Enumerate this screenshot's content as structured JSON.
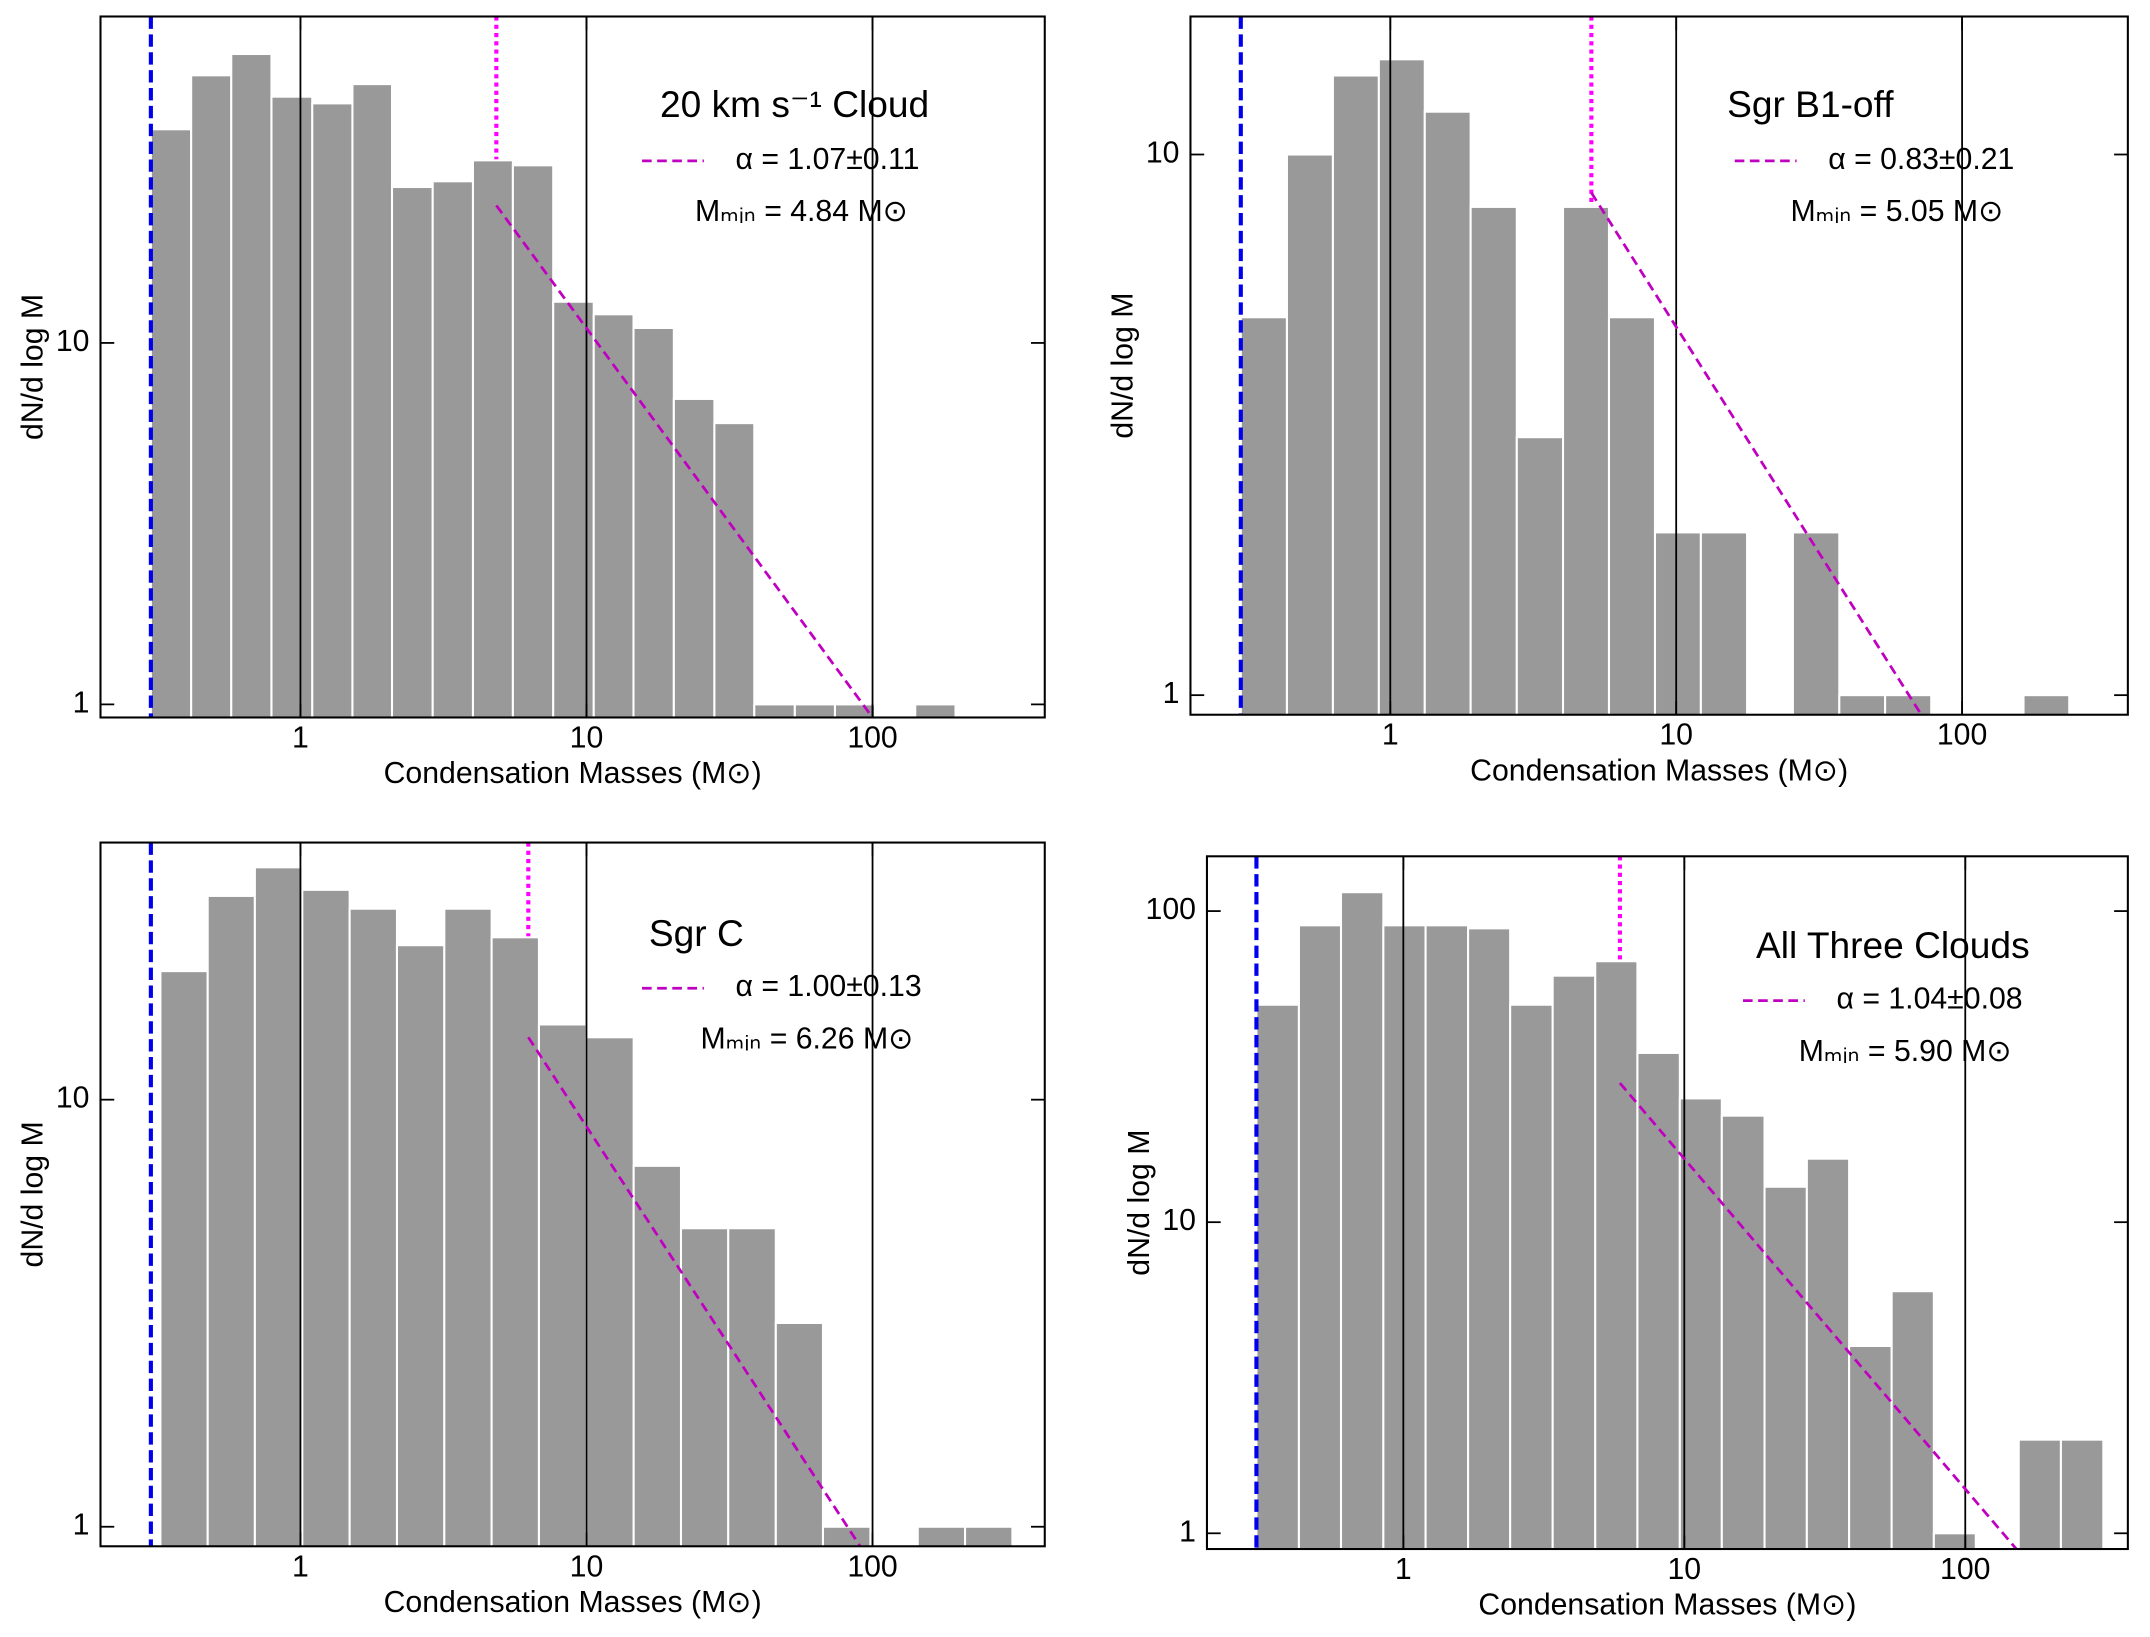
{
  "chart_data": [
    {
      "type": "histogram",
      "title": "20 km s⁻¹ Cloud",
      "x_label": "Condensation Masses (M⊙)",
      "y_label": "dN/d log M",
      "xscale": "log",
      "yscale": "log",
      "xlim": [
        0.2,
        400
      ],
      "ylim": [
        0.92,
        80
      ],
      "xticks": [
        1,
        10,
        100
      ],
      "yticks": [
        1,
        10
      ],
      "grid": true,
      "grid_color": "#000000",
      "bins": [
        0.3,
        0.415,
        0.573,
        0.792,
        1.1,
        1.52,
        2.09,
        2.9,
        4.01,
        5.53,
        7.65,
        10.6,
        14.6,
        20.2,
        28.0,
        38.6,
        53.5,
        73.9,
        102,
        141,
        195
      ],
      "values": [
        39,
        55,
        63,
        48,
        46,
        52,
        27,
        28,
        32,
        31,
        13,
        12,
        11,
        7,
        6,
        1,
        1,
        1,
        0,
        1
      ],
      "color": "#999999",
      "completeness_limit": 0.3,
      "completeness_color": "#0000ee",
      "mmin": 4.84,
      "mmin_color": "#ff00ff",
      "fit": {
        "name": "α = 1.07±0.11",
        "color": "#c000c0",
        "x": [
          4.84,
          100
        ],
        "y": [
          24,
          0.92
        ]
      },
      "annotations": [
        "Mₘᵢₙ = 4.84 M⊙"
      ]
    },
    {
      "type": "histogram",
      "title": "Sgr B1-off",
      "x_label": "Condensation Masses (M⊙)",
      "y_label": "dN/d log M",
      "xscale": "log",
      "yscale": "log",
      "xlim": [
        0.2,
        380
      ],
      "ylim": [
        0.92,
        18
      ],
      "xticks": [
        1,
        10,
        100
      ],
      "yticks": [
        1,
        10
      ],
      "grid": true,
      "grid_color": "#000000",
      "bins": [
        0.3,
        0.435,
        0.63,
        0.912,
        1.32,
        1.91,
        2.77,
        4.02,
        5.82,
        8.43,
        12.2,
        17.7,
        25.6,
        37.2,
        53.8,
        78.0,
        113,
        164,
        237
      ],
      "values": [
        5,
        10,
        14,
        15,
        12,
        8,
        3,
        8,
        5,
        2,
        2,
        0,
        2,
        1,
        1,
        0,
        0,
        1
      ],
      "color": "#999999",
      "completeness_limit": 0.3,
      "completeness_color": "#0000ee",
      "mmin": 5.05,
      "mmin_color": "#ff00ff",
      "fit": {
        "name": "α = 0.83±0.21",
        "color": "#c000c0",
        "x": [
          5.05,
          72
        ],
        "y": [
          8.5,
          0.92
        ]
      },
      "annotations": [
        "Mₘᵢₙ = 5.05 M⊙"
      ]
    },
    {
      "type": "histogram",
      "title": "Sgr C",
      "x_label": "Condensation Masses (M⊙)",
      "y_label": "dN/d log M",
      "xscale": "log",
      "yscale": "log",
      "xlim": [
        0.2,
        400
      ],
      "ylim": [
        0.9,
        40
      ],
      "xticks": [
        1,
        10,
        100
      ],
      "yticks": [
        1,
        10
      ],
      "grid": true,
      "grid_color": "#000000",
      "bins": [
        0.324,
        0.474,
        0.693,
        1.015,
        1.486,
        2.175,
        3.184,
        4.66,
        6.82,
        9.99,
        14.62,
        21.4,
        31.3,
        45.9,
        67.1,
        98.3,
        143.9,
        210.6,
        308.3
      ],
      "values": [
        20,
        30,
        35,
        31,
        28,
        23,
        28,
        24,
        15,
        14,
        7,
        5,
        5,
        3,
        1,
        0,
        1,
        1
      ],
      "color": "#999999",
      "completeness_limit": 0.3,
      "completeness_color": "#0000ee",
      "mmin": 6.26,
      "mmin_color": "#ff00ff",
      "fit": {
        "name": "α = 1.00±0.13",
        "color": "#c000c0",
        "x": [
          6.26,
          90.5
        ],
        "y": [
          14,
          0.9
        ]
      },
      "annotations": [
        "Mₘᵢₙ = 6.26 M⊙"
      ]
    },
    {
      "type": "histogram",
      "title": "All Three Clouds",
      "x_label": "Condensation Masses (M⊙)",
      "y_label": "dN/d log M",
      "xscale": "log",
      "yscale": "log",
      "xlim": [
        0.2,
        379
      ],
      "ylim": [
        0.89,
        150
      ],
      "xticks": [
        1,
        10,
        100
      ],
      "yticks": [
        1,
        10,
        100
      ],
      "grid": true,
      "grid_color": "#000000",
      "bins": [
        0.3,
        0.425,
        0.6,
        0.849,
        1.2,
        1.7,
        2.4,
        3.4,
        4.82,
        6.81,
        9.64,
        13.6,
        19.3,
        27.3,
        38.6,
        54.7,
        77.3,
        109,
        155,
        219,
        310
      ],
      "values": [
        50,
        90,
        115,
        90,
        90,
        88,
        50,
        62,
        69,
        35,
        25,
        22,
        13,
        16,
        4,
        6,
        1,
        0,
        2,
        2
      ],
      "color": "#999999",
      "completeness_limit": 0.3,
      "completeness_color": "#0000ee",
      "mmin": 5.9,
      "mmin_color": "#ff00ff",
      "fit": {
        "name": "α = 1.04±0.08",
        "color": "#c000c0",
        "x": [
          5.9,
          152
        ],
        "y": [
          28,
          0.89
        ]
      },
      "annotations": [
        "Mₘᵢₙ = 5.90 M⊙"
      ]
    }
  ]
}
